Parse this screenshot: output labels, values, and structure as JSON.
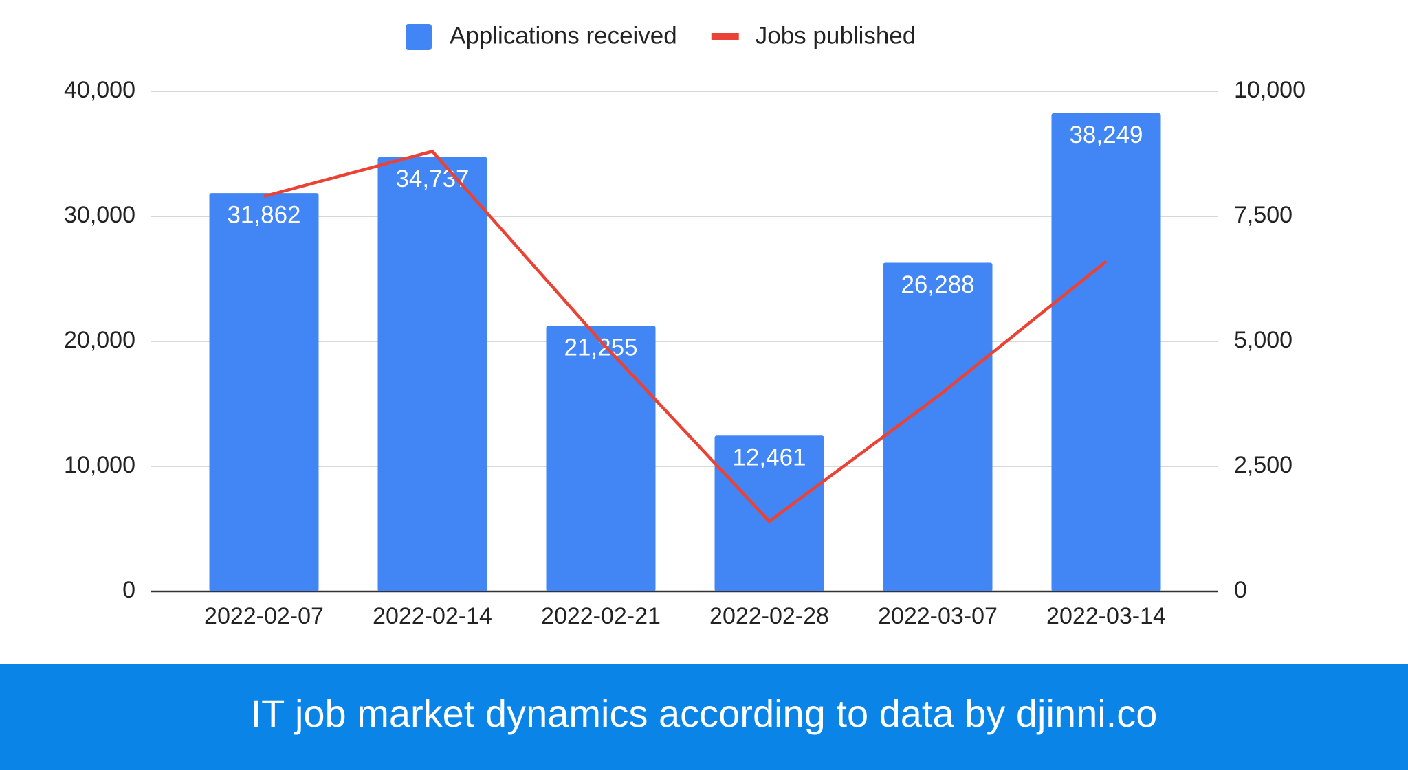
{
  "chart_data": {
    "type": "bar_line",
    "caption": "IT job market dynamics according to data by djinni.co",
    "categories": [
      "2022-02-07",
      "2022-02-14",
      "2022-02-21",
      "2022-02-28",
      "2022-03-07",
      "2022-03-14"
    ],
    "series": [
      {
        "name": "Applications received",
        "type": "bar",
        "color": "#4285f4",
        "values": [
          31862,
          34737,
          21255,
          12461,
          26288,
          38249
        ],
        "value_labels": [
          "31,862",
          "34,737",
          "21,255",
          "12,461",
          "26,288",
          "38,249"
        ]
      },
      {
        "name": "Jobs published",
        "type": "line",
        "color": "#ea4335",
        "axis": "y2",
        "values": [
          7900,
          8800,
          5000,
          1400,
          3900,
          6600
        ]
      }
    ],
    "ylim": [
      0,
      40000
    ],
    "yticks": [
      0,
      {
        "value": 10000,
        "label": "10,000"
      },
      {
        "value": 20000,
        "label": "20,000"
      },
      {
        "value": 30000,
        "label": "30,000"
      },
      {
        "value": 40000,
        "label": "40,000"
      }
    ],
    "y2lim": [
      0,
      10000
    ],
    "y2ticks": [
      0,
      {
        "value": 2500,
        "label": "2,500"
      },
      {
        "value": 5000,
        "label": "5,000"
      },
      {
        "value": 7500,
        "label": "7,500"
      },
      {
        "value": 10000,
        "label": "10,000"
      }
    ],
    "grid": true,
    "legend": "top"
  }
}
